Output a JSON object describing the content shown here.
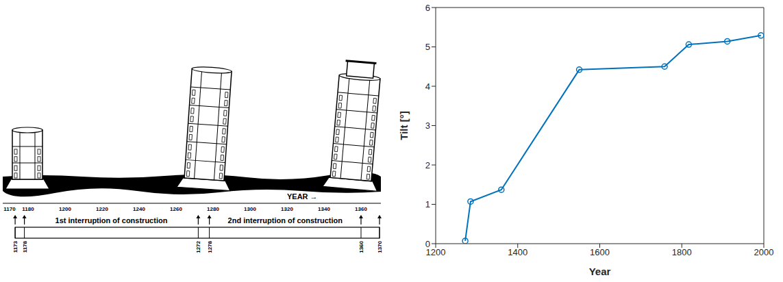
{
  "diagram": {
    "axis_label": "YEAR →",
    "timeline_ticks": [
      1170,
      1180,
      1200,
      1220,
      1240,
      1260,
      1280,
      1300,
      1320,
      1340,
      1360
    ],
    "marker_years": [
      1173,
      1178,
      1272,
      1278,
      1360,
      1370
    ],
    "interruptions": [
      {
        "label": "1st interruption of construction",
        "start": 1178,
        "end": 1272
      },
      {
        "label": "2nd interruption of construction",
        "start": 1278,
        "end": 1360
      }
    ]
  },
  "chart_data": {
    "type": "line",
    "x": [
      1272,
      1285,
      1360,
      1550,
      1758,
      1817,
      1911,
      1993
    ],
    "values": [
      0.07,
      1.07,
      1.37,
      4.42,
      4.5,
      5.06,
      5.14,
      5.29
    ],
    "color": "#0072bd",
    "marker": "circle",
    "x_label": "Year",
    "y_label": "Tilt [°]",
    "xlim": [
      1200,
      2000
    ],
    "xticks": [
      1200,
      1400,
      1600,
      1800,
      2000
    ],
    "ylim": [
      0,
      6
    ],
    "yticks": [
      0,
      1,
      2,
      3,
      4,
      5,
      6
    ],
    "grid": false
  }
}
